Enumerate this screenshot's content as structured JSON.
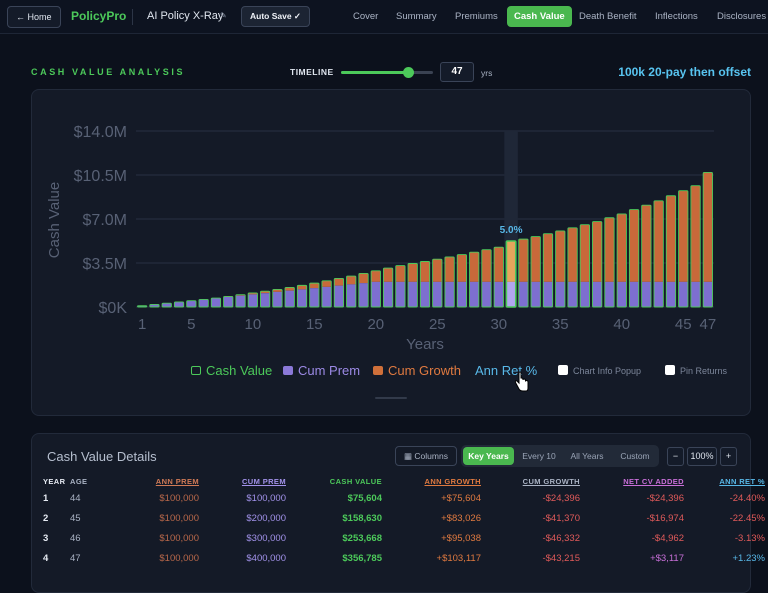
{
  "topbar": {
    "home_label": "← Home",
    "brand": "PolicyPro",
    "app_title": "AI Policy X-Ray",
    "autosave_label": "Auto Save ✓",
    "tabs": [
      "Cover",
      "Summary",
      "Premiums",
      "Cash Value",
      "Death Benefit",
      "Inflections",
      "Disclosures"
    ],
    "active_tab": "Cash Value"
  },
  "controls": {
    "section_title": "CASH VALUE ANALYSIS",
    "timeline_label": "TIMELINE",
    "timeline_value": "47",
    "timeline_fraction": 0.73,
    "timeline_unit": "yrs",
    "scenario": "100k 20-pay then offset"
  },
  "chart_data": {
    "type": "bar",
    "ylabel": "Cash Value",
    "xlabel": "Years",
    "ylim": [
      0,
      14000000
    ],
    "y_ticks": [
      "$0K",
      "$3.5M",
      "$7.0M",
      "$10.5M",
      "$14.0M"
    ],
    "x_ticks": [
      "1",
      "5",
      "10",
      "15",
      "20",
      "25",
      "30",
      "35",
      "40",
      "45",
      "47"
    ],
    "grid": true,
    "x": [
      1,
      2,
      3,
      4,
      5,
      6,
      7,
      8,
      9,
      10,
      11,
      12,
      13,
      14,
      15,
      16,
      17,
      18,
      19,
      20,
      21,
      22,
      23,
      24,
      25,
      26,
      27,
      28,
      29,
      30,
      31,
      32,
      33,
      34,
      35,
      36,
      37,
      38,
      39,
      40,
      41,
      42,
      43,
      44,
      45,
      46,
      47
    ],
    "series": [
      {
        "name": "Cum Prem",
        "values": [
          100000,
          200000,
          300000,
          400000,
          500000,
          600000,
          700000,
          800000,
          900000,
          1000000,
          1100000,
          1200000,
          1300000,
          1400000,
          1500000,
          1600000,
          1700000,
          1800000,
          1900000,
          2000000,
          2000000,
          2000000,
          2000000,
          2000000,
          2000000,
          2000000,
          2000000,
          2000000,
          2000000,
          2000000,
          2000000,
          2000000,
          2000000,
          2000000,
          2000000,
          2000000,
          2000000,
          2000000,
          2000000,
          2000000,
          2000000,
          2000000,
          2000000,
          2000000,
          2000000,
          2000000,
          2000000
        ]
      },
      {
        "name": "Cash Value",
        "values": [
          75604,
          158630,
          253668,
          356785,
          470000,
          590000,
          710000,
          840000,
          980000,
          1120000,
          1260000,
          1400000,
          1560000,
          1720000,
          1900000,
          2080000,
          2270000,
          2460000,
          2670000,
          2880000,
          3100000,
          3300000,
          3460000,
          3620000,
          3800000,
          3980000,
          4170000,
          4360000,
          4560000,
          4760000,
          5250000,
          5400000,
          5600000,
          5830000,
          6050000,
          6300000,
          6550000,
          6800000,
          7100000,
          7400000,
          7750000,
          8100000,
          8450000,
          8850000,
          9250000,
          9650000,
          10700000
        ]
      }
    ],
    "legend": [
      "Cash Value",
      "Cum Prem",
      "Cum Growth",
      "Ann Ret %"
    ],
    "highlight": {
      "year": 31,
      "label": "5.0%"
    },
    "colors": {
      "cash_value": "#4cc95a",
      "cum_prem": "#8b79d8",
      "cum_growth": "#d0703a",
      "ann_ret": "#58b8e8"
    }
  },
  "chart_options": {
    "info_popup_label": "Chart Info Popup",
    "pin_returns_label": "Pin Returns"
  },
  "details": {
    "title": "Cash Value Details",
    "columns_btn": "Columns",
    "views": [
      "Key Years",
      "Every 10",
      "All Years",
      "Custom"
    ],
    "active_view": "Key Years",
    "zoom_minus": "−",
    "zoom": "100%",
    "zoom_plus": "+",
    "headers": [
      "YEAR",
      "AGE",
      "ANN PREM",
      "CUM PREM",
      "CASH VALUE",
      "ANN GROWTH",
      "CUM GROWTH",
      "NET CV ADDED",
      "ANN RET %"
    ],
    "rows": [
      [
        "1",
        "44",
        "$100,000",
        "$100,000",
        "$75,604",
        "+$75,604",
        "-$24,396",
        "-$24,396",
        "-24.40%"
      ],
      [
        "2",
        "45",
        "$100,000",
        "$200,000",
        "$158,630",
        "+$83,026",
        "-$41,370",
        "-$16,974",
        "-22.45%"
      ],
      [
        "3",
        "46",
        "$100,000",
        "$300,000",
        "$253,668",
        "+$95,038",
        "-$46,332",
        "-$4,962",
        "-3.13%"
      ],
      [
        "4",
        "47",
        "$100,000",
        "$400,000",
        "$356,785",
        "+$103,117",
        "-$43,215",
        "+$3,117",
        "+1.23%"
      ]
    ]
  }
}
